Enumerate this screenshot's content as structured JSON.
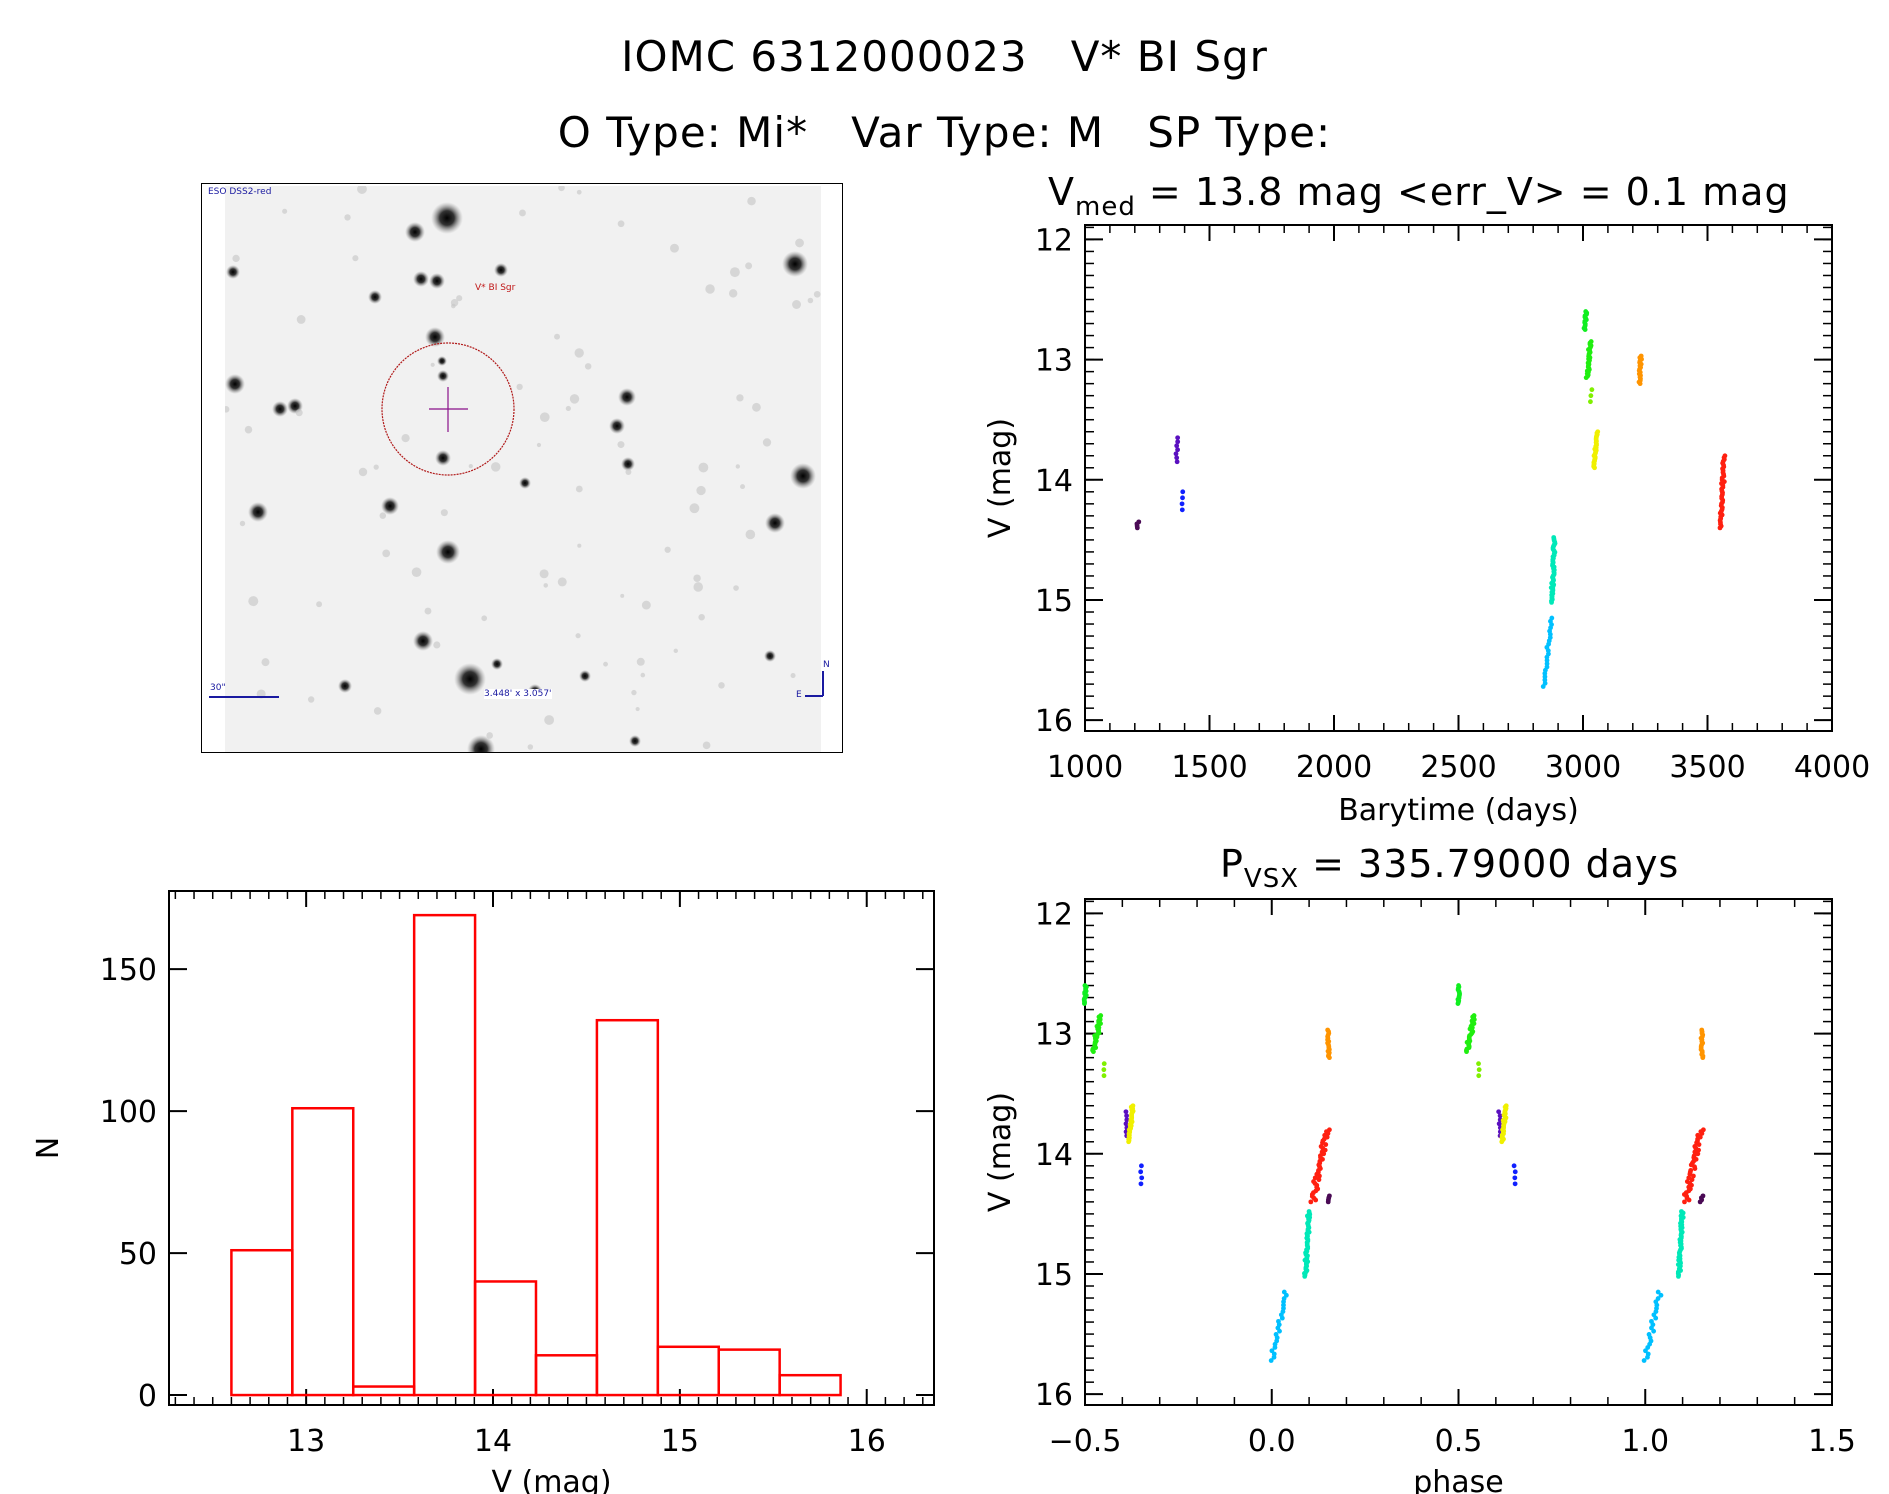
{
  "header": {
    "title_line1": "IOMC 6312000023   V* BI Sgr",
    "title_line2": "O Type: Mi*   Var Type: M   SP Type:"
  },
  "image_panel": {
    "survey_label": "ESO DSS2-red",
    "target_label": "V* BI Sgr",
    "scale_label": "30\"",
    "fov_label": "3.448' x 3.057'",
    "north_label": "N",
    "east_label": "E"
  },
  "lightcurve": {
    "title_v": "V",
    "title_sub": "med",
    "title_rest": " = 13.8 mag <err_V> = 0.1 mag"
  },
  "phaseplot": {
    "title_p": "P",
    "title_sub": "VSX",
    "title_rest": " = 335.79000 days"
  },
  "chart_data": [
    {
      "id": "lightcurve",
      "type": "scatter",
      "xlabel": "Barytime (days)",
      "ylabel": "V (mag)",
      "xlim": [
        1000,
        4000
      ],
      "ylim": [
        16.09,
        11.88
      ],
      "xticks": [
        1000,
        1500,
        2000,
        2500,
        3000,
        3500,
        4000
      ],
      "yticks": [
        12,
        13,
        14,
        15,
        16
      ],
      "xminor": 100,
      "yminor": 0.1,
      "clusters": [
        {
          "t": [
            1208,
            1212
          ],
          "mag": [
            14.35,
            14.4
          ],
          "color": "#4a0a55",
          "n": 4
        },
        {
          "t": [
            1368,
            1372
          ],
          "mag": [
            13.65,
            13.85
          ],
          "color": "#5a10c0",
          "n": 7
        },
        {
          "t": [
            1388,
            1392
          ],
          "mag": [
            14.1,
            14.25
          ],
          "color": "#1020ff",
          "n": 4
        },
        {
          "t": [
            2845,
            2875
          ],
          "mag": [
            15.15,
            15.72
          ],
          "color": "#00c0ff",
          "n": 22
        },
        {
          "t": [
            2875,
            2885
          ],
          "mag": [
            14.48,
            15.02
          ],
          "color": "#00e8b8",
          "n": 45
        },
        {
          "t": [
            3008,
            3012
          ],
          "mag": [
            12.6,
            12.75
          ],
          "color": "#10ee20",
          "n": 14
        },
        {
          "t": [
            3018,
            3030
          ],
          "mag": [
            12.85,
            13.15
          ],
          "color": "#20ee10",
          "n": 28
        },
        {
          "t": [
            3033,
            3037
          ],
          "mag": [
            13.25,
            13.35
          ],
          "color": "#80f000",
          "n": 3
        },
        {
          "t": [
            3045,
            3055
          ],
          "mag": [
            13.6,
            13.9
          ],
          "color": "#f0f000",
          "n": 28
        },
        {
          "t": [
            3228,
            3232
          ],
          "mag": [
            12.97,
            13.2
          ],
          "color": "#ff9400",
          "n": 18
        },
        {
          "t": [
            3552,
            3568
          ],
          "mag": [
            13.8,
            14.4
          ],
          "color": "#ff2010",
          "n": 40
        }
      ]
    },
    {
      "id": "phaseplot",
      "type": "scatter",
      "xlabel": "phase",
      "ylabel": "V (mag)",
      "xlim": [
        -0.5,
        1.5
      ],
      "ylim": [
        16.09,
        11.88
      ],
      "xticks": [
        -0.5,
        0.0,
        0.5,
        1.0,
        1.5
      ],
      "xticklabels": [
        "−0.5",
        "0.0",
        "0.5",
        "1.0",
        "1.5"
      ],
      "yticks": [
        12,
        13,
        14,
        15,
        16
      ],
      "xminor": 0.1,
      "yminor": 0.1,
      "clusters": [
        {
          "phase": [
            0.148,
            0.152
          ],
          "mag": [
            14.35,
            14.4
          ],
          "color": "#4a0a55",
          "n": 4
        },
        {
          "phase": [
            -0.39,
            -0.39
          ],
          "mag": [
            13.65,
            13.85
          ],
          "color": "#5a10c0",
          "n": 7
        },
        {
          "phase": [
            -0.35,
            -0.35
          ],
          "mag": [
            14.1,
            14.25
          ],
          "color": "#1020ff",
          "n": 4
        },
        {
          "phase": [
            0.0,
            0.04
          ],
          "mag": [
            15.15,
            15.72
          ],
          "color": "#00c0ff",
          "n": 22
        },
        {
          "phase": [
            0.09,
            0.1
          ],
          "mag": [
            14.48,
            15.02
          ],
          "color": "#00e8b8",
          "n": 45
        },
        {
          "phase": [
            -0.5,
            -0.498
          ],
          "mag": [
            12.6,
            12.75
          ],
          "color": "#10ee20",
          "n": 14
        },
        {
          "phase": [
            -0.478,
            -0.458
          ],
          "mag": [
            12.85,
            13.15
          ],
          "color": "#20ee10",
          "n": 28
        },
        {
          "phase": [
            -0.447,
            -0.447
          ],
          "mag": [
            13.25,
            13.35
          ],
          "color": "#80f000",
          "n": 3
        },
        {
          "phase": [
            -0.383,
            -0.372
          ],
          "mag": [
            13.6,
            13.9
          ],
          "color": "#f0f000",
          "n": 28
        },
        {
          "phase": [
            0.152,
            0.152
          ],
          "mag": [
            12.97,
            13.2
          ],
          "color": "#ff9400",
          "n": 18
        },
        {
          "phase": [
            0.108,
            0.15
          ],
          "mag": [
            13.8,
            14.4
          ],
          "color": "#ff2010",
          "n": 40
        }
      ]
    },
    {
      "id": "histogram",
      "type": "bar",
      "xlabel": "V (mag)",
      "ylabel": "N",
      "xlim": [
        12.266,
        16.36
      ],
      "ylim": [
        -3.5,
        177.5
      ],
      "xticks": [
        13,
        14,
        15,
        16
      ],
      "yticks": [
        0,
        50,
        100,
        150
      ],
      "xminor": 0.1,
      "bin_edges": [
        12.6,
        12.926,
        13.252,
        13.578,
        13.904,
        14.23,
        14.556,
        14.882,
        15.208,
        15.534,
        15.86
      ],
      "values": [
        51,
        101,
        3,
        169,
        40,
        14,
        132,
        17,
        16,
        7
      ],
      "color": "#ff0000"
    }
  ]
}
